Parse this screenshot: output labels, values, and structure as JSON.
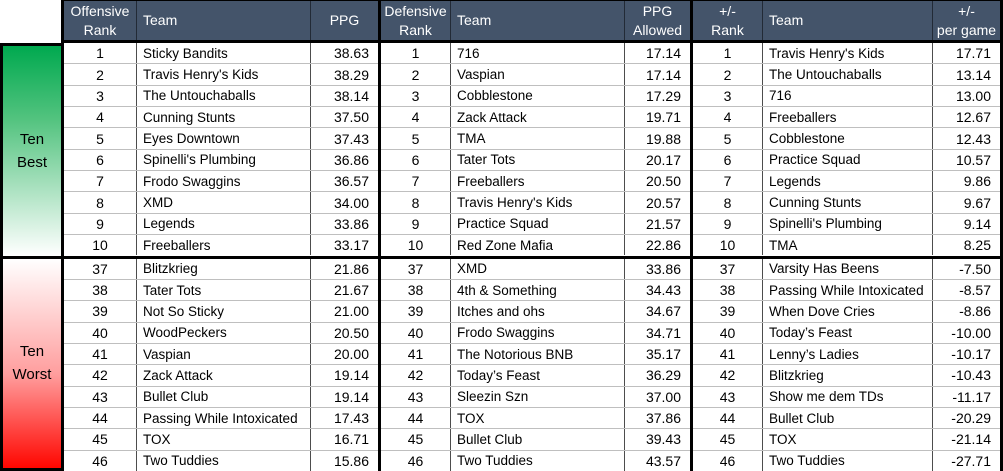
{
  "sidebar": {
    "best_label": "Ten\nBest",
    "worst_label": "Ten\nWorst"
  },
  "colors": {
    "header_bg": "#44546A",
    "header_text": "#FFFFFF",
    "best_gradient_top": "#00A94F",
    "worst_gradient_bottom": "#FF0000",
    "grid_line": "#BFBFBF",
    "thick_border": "#000000"
  },
  "tables": [
    {
      "id": "offense",
      "headers": {
        "rank": "Offensive\nRank",
        "team": "Team",
        "value": "PPG"
      },
      "best": [
        {
          "rank": "1",
          "team": "Sticky Bandits",
          "value": "38.63"
        },
        {
          "rank": "2",
          "team": "Travis Henry's Kids",
          "value": "38.29"
        },
        {
          "rank": "3",
          "team": "The Untouchaballs",
          "value": "38.14"
        },
        {
          "rank": "4",
          "team": "Cunning Stunts",
          "value": "37.50"
        },
        {
          "rank": "5",
          "team": "Eyes Downtown",
          "value": "37.43"
        },
        {
          "rank": "6",
          "team": "Spinelli's Plumbing",
          "value": "36.86"
        },
        {
          "rank": "7",
          "team": "Frodo Swaggins",
          "value": "36.57"
        },
        {
          "rank": "8",
          "team": "XMD",
          "value": "34.00"
        },
        {
          "rank": "9",
          "team": "Legends",
          "value": "33.86"
        },
        {
          "rank": "10",
          "team": "Freeballers",
          "value": "33.17"
        }
      ],
      "worst": [
        {
          "rank": "37",
          "team": "Blitzkrieg",
          "value": "21.86"
        },
        {
          "rank": "38",
          "team": "Tater Tots",
          "value": "21.67"
        },
        {
          "rank": "39",
          "team": "Not So Sticky",
          "value": "21.00"
        },
        {
          "rank": "40",
          "team": "WoodPeckers",
          "value": "20.50"
        },
        {
          "rank": "41",
          "team": "Vaspian",
          "value": "20.00"
        },
        {
          "rank": "42",
          "team": "Zack Attack",
          "value": "19.14"
        },
        {
          "rank": "43",
          "team": "Bullet Club",
          "value": "19.14"
        },
        {
          "rank": "44",
          "team": "Passing While Intoxicated",
          "value": "17.43"
        },
        {
          "rank": "45",
          "team": "TOX",
          "value": "16.71"
        },
        {
          "rank": "46",
          "team": "Two Tuddies",
          "value": "15.86"
        }
      ]
    },
    {
      "id": "defense",
      "headers": {
        "rank": "Defensive\nRank",
        "team": "Team",
        "value": "PPG\nAllowed"
      },
      "best": [
        {
          "rank": "1",
          "team": "716",
          "value": "17.14"
        },
        {
          "rank": "2",
          "team": "Vaspian",
          "value": "17.14"
        },
        {
          "rank": "3",
          "team": "Cobblestone",
          "value": "17.29"
        },
        {
          "rank": "4",
          "team": "Zack Attack",
          "value": "19.71"
        },
        {
          "rank": "5",
          "team": "TMA",
          "value": "19.88"
        },
        {
          "rank": "6",
          "team": "Tater Tots",
          "value": "20.17"
        },
        {
          "rank": "7",
          "team": "Freeballers",
          "value": "20.50"
        },
        {
          "rank": "8",
          "team": "Travis Henry's Kids",
          "value": "20.57"
        },
        {
          "rank": "9",
          "team": "Practice Squad",
          "value": "21.57"
        },
        {
          "rank": "10",
          "team": "Red Zone Mafia",
          "value": "22.86"
        }
      ],
      "worst": [
        {
          "rank": "37",
          "team": "XMD",
          "value": "33.86"
        },
        {
          "rank": "38",
          "team": "4th & Something",
          "value": "34.43"
        },
        {
          "rank": "39",
          "team": "Itches and ohs",
          "value": "34.67"
        },
        {
          "rank": "40",
          "team": "Frodo Swaggins",
          "value": "34.71"
        },
        {
          "rank": "41",
          "team": "The Notorious BNB",
          "value": "35.17"
        },
        {
          "rank": "42",
          "team": "Today’s Feast",
          "value": "36.29"
        },
        {
          "rank": "43",
          "team": "Sleezin Szn",
          "value": "37.00"
        },
        {
          "rank": "44",
          "team": "TOX",
          "value": "37.86"
        },
        {
          "rank": "45",
          "team": "Bullet Club",
          "value": "39.43"
        },
        {
          "rank": "46",
          "team": "Two Tuddies",
          "value": "43.57"
        }
      ]
    },
    {
      "id": "plus-minus",
      "headers": {
        "rank": "+/-\nRank",
        "team": "Team",
        "value": "+/-\nper game"
      },
      "best": [
        {
          "rank": "1",
          "team": "Travis Henry's Kids",
          "value": "17.71"
        },
        {
          "rank": "2",
          "team": "The Untouchaballs",
          "value": "13.14"
        },
        {
          "rank": "3",
          "team": "716",
          "value": "13.00"
        },
        {
          "rank": "4",
          "team": "Freeballers",
          "value": "12.67"
        },
        {
          "rank": "5",
          "team": "Cobblestone",
          "value": "12.43"
        },
        {
          "rank": "6",
          "team": "Practice Squad",
          "value": "10.57"
        },
        {
          "rank": "7",
          "team": "Legends",
          "value": "9.86"
        },
        {
          "rank": "8",
          "team": "Cunning Stunts",
          "value": "9.67"
        },
        {
          "rank": "9",
          "team": "Spinelli's Plumbing",
          "value": "9.14"
        },
        {
          "rank": "10",
          "team": "TMA",
          "value": "8.25"
        }
      ],
      "worst": [
        {
          "rank": "37",
          "team": "Varsity Has Beens",
          "value": "-7.50"
        },
        {
          "rank": "38",
          "team": "Passing While Intoxicated",
          "value": "-8.57"
        },
        {
          "rank": "39",
          "team": "When Dove Cries",
          "value": "-8.86"
        },
        {
          "rank": "40",
          "team": "Today’s Feast",
          "value": "-10.00"
        },
        {
          "rank": "41",
          "team": "Lenny’s Ladies",
          "value": "-10.17"
        },
        {
          "rank": "42",
          "team": "Blitzkrieg",
          "value": "-10.43"
        },
        {
          "rank": "43",
          "team": "Show me dem TDs",
          "value": "-11.17"
        },
        {
          "rank": "44",
          "team": "Bullet Club",
          "value": "-20.29"
        },
        {
          "rank": "45",
          "team": "TOX",
          "value": "-21.14"
        },
        {
          "rank": "46",
          "team": "Two Tuddies",
          "value": "-27.71"
        }
      ]
    }
  ]
}
